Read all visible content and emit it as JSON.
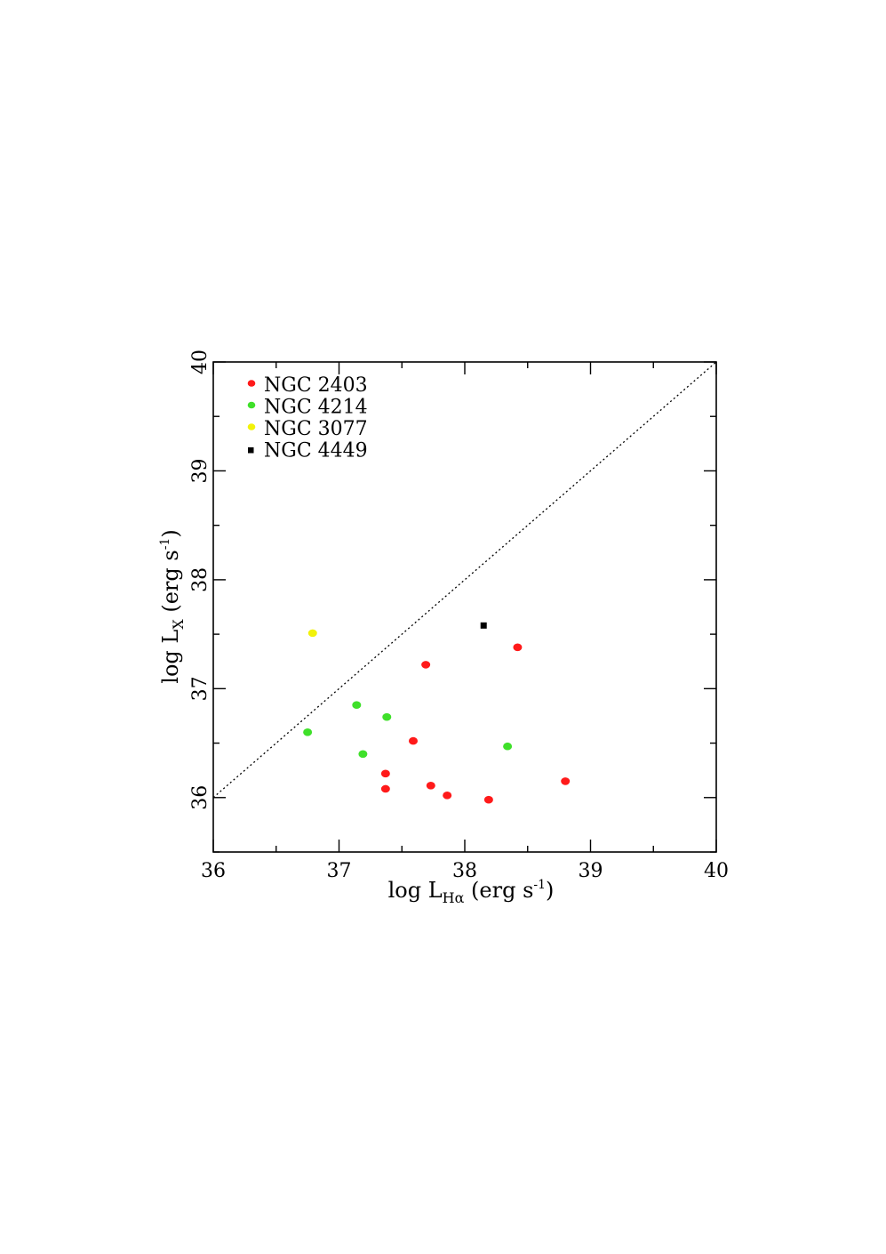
{
  "chart_data": {
    "type": "scatter",
    "title": "",
    "xlabel": {
      "prefix": "log L",
      "sub": "Hα",
      "suffix": " (erg s",
      "sup": "-1",
      "close": ")"
    },
    "ylabel": {
      "prefix": "log L",
      "sub": "X",
      "suffix": " (erg s",
      "sup": "-1",
      "close": ")"
    },
    "xlim": [
      36,
      40
    ],
    "ylim": [
      35.5,
      40
    ],
    "x_ticks": [
      "36",
      "37",
      "38",
      "39",
      "40"
    ],
    "y_ticks": [
      "36",
      "37",
      "38",
      "39",
      "40"
    ],
    "reference_line": {
      "style": "dotted",
      "x": [
        36,
        40
      ],
      "y": [
        36,
        40
      ]
    },
    "legend_position": "top-left",
    "series": [
      {
        "name": "NGC 2403",
        "marker": "circle",
        "color": "#ff1a1a",
        "points": [
          {
            "x": 37.69,
            "y": 37.22
          },
          {
            "x": 38.42,
            "y": 37.38
          },
          {
            "x": 37.59,
            "y": 36.52
          },
          {
            "x": 37.37,
            "y": 36.22
          },
          {
            "x": 37.37,
            "y": 36.08
          },
          {
            "x": 37.73,
            "y": 36.11
          },
          {
            "x": 37.86,
            "y": 36.02
          },
          {
            "x": 38.19,
            "y": 35.98
          },
          {
            "x": 38.8,
            "y": 36.15
          }
        ]
      },
      {
        "name": "NGC 4214",
        "marker": "circle",
        "color": "#3fe02a",
        "points": [
          {
            "x": 37.14,
            "y": 36.85
          },
          {
            "x": 37.38,
            "y": 36.74
          },
          {
            "x": 36.75,
            "y": 36.6
          },
          {
            "x": 37.19,
            "y": 36.4
          },
          {
            "x": 38.34,
            "y": 36.47
          }
        ]
      },
      {
        "name": "NGC 3077",
        "marker": "circle",
        "color": "#f2f20a",
        "points": [
          {
            "x": 36.79,
            "y": 37.51
          }
        ]
      },
      {
        "name": "NGC 4449",
        "marker": "square",
        "color": "#000000",
        "points": [
          {
            "x": 38.15,
            "y": 37.58
          }
        ]
      }
    ]
  }
}
